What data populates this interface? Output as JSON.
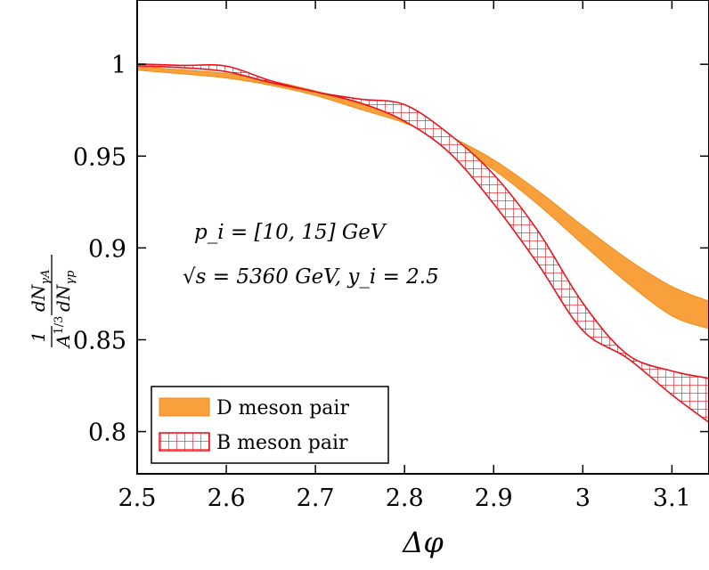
{
  "chart_data": {
    "type": "area",
    "xlabel": "Δφ",
    "ylabel_parts": {
      "lead": "1",
      "lead_den": "A",
      "lead_den_sup": "1/3",
      "num": "dN",
      "num_sub": "γA",
      "den": "dN",
      "den_sub": "γp"
    },
    "xlim": [
      2.5,
      3.14159
    ],
    "ylim": [
      0.777,
      1.035
    ],
    "x_ticks": [
      "2.5",
      "2.6",
      "2.7",
      "2.8",
      "2.9",
      "3",
      "3.1"
    ],
    "x_tick_values": [
      2.5,
      2.6,
      2.7,
      2.8,
      2.9,
      3.0,
      3.1
    ],
    "y_ticks": [
      "0.8",
      "0.85",
      "0.9",
      "0.95",
      "1"
    ],
    "y_tick_values": [
      0.8,
      0.85,
      0.9,
      0.95,
      1.0
    ],
    "annotations": [
      "p_i = [10, 15] GeV",
      "√s = 5360 GeV, y_i = 2.5"
    ],
    "legend_position": "bottom-left",
    "series": [
      {
        "name": "D meson pair",
        "style": "filled",
        "color": "#f7a03c",
        "edge_color": "#f08c1c",
        "x": [
          2.5,
          2.55,
          2.6,
          2.65,
          2.7,
          2.75,
          2.8,
          2.85,
          2.9,
          2.95,
          3.0,
          3.05,
          3.1,
          3.14159
        ],
        "upper": [
          0.9988,
          0.997,
          0.995,
          0.991,
          0.9855,
          0.9785,
          0.971,
          0.961,
          0.948,
          0.931,
          0.912,
          0.894,
          0.879,
          0.871
        ],
        "lower": [
          0.9968,
          0.9948,
          0.9925,
          0.9885,
          0.983,
          0.9755,
          0.968,
          0.9575,
          0.9425,
          0.9235,
          0.902,
          0.881,
          0.863,
          0.856
        ]
      },
      {
        "name": "B meson pair",
        "style": "hatched",
        "color": "#e8141c",
        "x": [
          2.5,
          2.55,
          2.6,
          2.65,
          2.7,
          2.75,
          2.8,
          2.85,
          2.9,
          2.95,
          3.0,
          3.05,
          3.1,
          3.14159
        ],
        "upper": [
          1.0002,
          0.9994,
          0.999,
          0.991,
          0.985,
          0.981,
          0.978,
          0.962,
          0.94,
          0.909,
          0.87,
          0.842,
          0.833,
          0.829
        ],
        "lower": [
          0.9992,
          0.9982,
          0.996,
          0.99,
          0.985,
          0.979,
          0.969,
          0.952,
          0.924,
          0.891,
          0.855,
          0.84,
          0.82,
          0.805
        ]
      }
    ]
  }
}
